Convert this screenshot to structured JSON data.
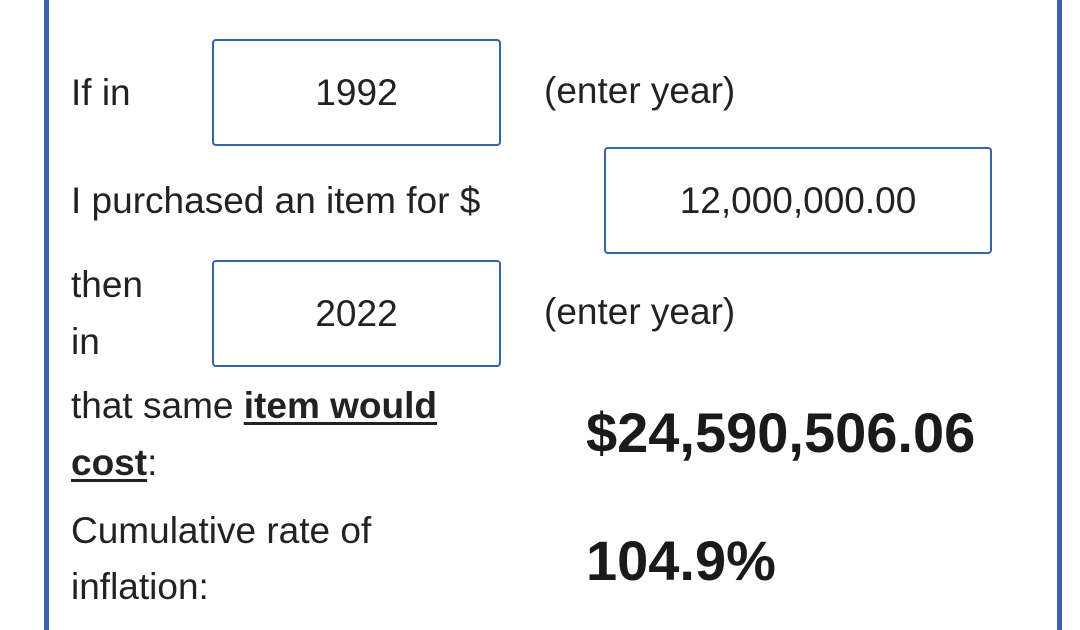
{
  "calculator": {
    "row1": {
      "label": "If in",
      "start_year": "1992",
      "hint": "(enter year)"
    },
    "row2": {
      "label": "I purchased an item for $",
      "amount": "12,000,000.00"
    },
    "row3": {
      "label_line1": "then",
      "label_line2": "in",
      "end_year": "2022",
      "hint": "(enter year)"
    },
    "row4": {
      "label_prefix": "that same ",
      "label_link_part1": "item would",
      "label_link_part2": "cost",
      "label_suffix": ":",
      "result": "$24,590,506.06"
    },
    "row5": {
      "label_line1": "Cumulative rate of",
      "label_line2": "inflation:",
      "result": "104.9%"
    }
  },
  "colors": {
    "border_accent": "#3a62a6",
    "text": "#222222"
  }
}
